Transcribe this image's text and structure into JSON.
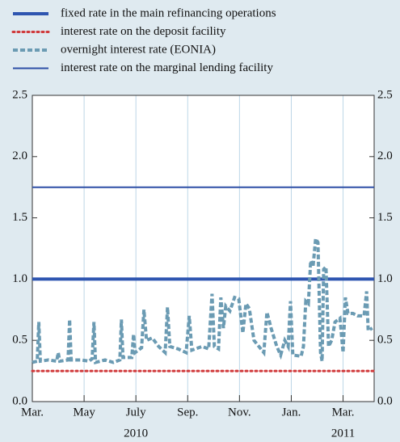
{
  "chart_data": {
    "type": "line",
    "series": [
      {
        "name": "fixed rate in the main refinancing operations",
        "color": "#2e55b0",
        "style": "thick",
        "x": [
          0,
          13.2
        ],
        "values": [
          1.0,
          1.0
        ]
      },
      {
        "name": "interest rate on the deposit facility",
        "color": "#d0393a",
        "style": "dotted",
        "x": [
          0,
          13.2
        ],
        "values": [
          0.25,
          0.25
        ]
      },
      {
        "name": "overnight interest rate (EONIA)",
        "color": "#6b9bb3",
        "style": "dashed",
        "x": [
          0,
          0.19,
          0.25,
          0.31,
          0.63,
          0.94,
          1.0,
          1.06,
          1.38,
          1.44,
          1.5,
          1.88,
          2.19,
          2.31,
          2.38,
          2.44,
          2.81,
          3.13,
          3.38,
          3.44,
          3.5,
          3.84,
          3.91,
          3.97,
          4.22,
          4.31,
          4.41,
          4.63,
          4.88,
          5.13,
          5.22,
          5.31,
          5.63,
          5.94,
          6.06,
          6.16,
          6.56,
          6.81,
          6.94,
          7.03,
          7.19,
          7.28,
          7.38,
          7.47,
          7.63,
          7.81,
          7.97,
          8.13,
          8.25,
          8.38,
          8.56,
          8.75,
          8.94,
          9.06,
          9.22,
          9.44,
          9.59,
          9.75,
          9.88,
          9.97,
          10.06,
          10.38,
          10.47,
          10.56,
          10.66,
          10.75,
          10.84,
          10.94,
          11.03,
          11.13,
          11.19,
          11.25,
          11.34,
          11.44,
          11.56,
          11.69,
          11.88,
          12.0,
          12.09,
          12.19,
          12.38,
          12.56,
          12.81,
          12.91,
          12.97,
          13.13
        ],
        "values": [
          0.32,
          0.33,
          0.65,
          0.33,
          0.34,
          0.33,
          0.4,
          0.33,
          0.34,
          0.67,
          0.34,
          0.34,
          0.33,
          0.35,
          0.65,
          0.32,
          0.34,
          0.32,
          0.34,
          0.67,
          0.36,
          0.36,
          0.55,
          0.4,
          0.44,
          0.75,
          0.5,
          0.52,
          0.45,
          0.4,
          0.77,
          0.45,
          0.43,
          0.4,
          0.7,
          0.42,
          0.45,
          0.43,
          0.88,
          0.45,
          0.43,
          0.85,
          0.6,
          0.78,
          0.74,
          0.85,
          0.84,
          0.56,
          0.8,
          0.76,
          0.5,
          0.45,
          0.4,
          0.73,
          0.6,
          0.45,
          0.38,
          0.5,
          0.45,
          0.82,
          0.38,
          0.37,
          0.45,
          0.82,
          0.8,
          1.15,
          1.1,
          1.33,
          1.3,
          0.4,
          0.33,
          1.08,
          1.1,
          0.45,
          0.5,
          0.65,
          0.68,
          0.4,
          0.85,
          0.72,
          0.72,
          0.7,
          0.7,
          0.9,
          0.58,
          0.6
        ]
      },
      {
        "name": "interest rate on the marginal lending facility",
        "color": "#2e4fa6",
        "style": "solid",
        "x": [
          0,
          13.2
        ],
        "values": [
          1.75,
          1.75
        ]
      }
    ],
    "xlim": [
      0,
      13.2
    ],
    "xticks": [
      {
        "value": 0,
        "label": "Mar."
      },
      {
        "value": 2,
        "label": "May"
      },
      {
        "value": 4,
        "label": "July"
      },
      {
        "value": 6,
        "label": "Sep."
      },
      {
        "value": 8,
        "label": "Nov."
      },
      {
        "value": 10,
        "label": "Jan."
      },
      {
        "value": 12,
        "label": "Mar."
      }
    ],
    "year_labels": [
      {
        "value": 4,
        "label": "2010"
      },
      {
        "value": 12,
        "label": "2011"
      }
    ],
    "ylim": [
      0,
      2.5
    ],
    "yticks": [
      {
        "value": 0,
        "label": "0.0"
      },
      {
        "value": 0.5,
        "label": "0.5"
      },
      {
        "value": 1.0,
        "label": "1.0"
      },
      {
        "value": 1.5,
        "label": "1.5"
      },
      {
        "value": 2.0,
        "label": "2.0"
      },
      {
        "value": 2.5,
        "label": "2.5"
      }
    ],
    "grid": true
  }
}
